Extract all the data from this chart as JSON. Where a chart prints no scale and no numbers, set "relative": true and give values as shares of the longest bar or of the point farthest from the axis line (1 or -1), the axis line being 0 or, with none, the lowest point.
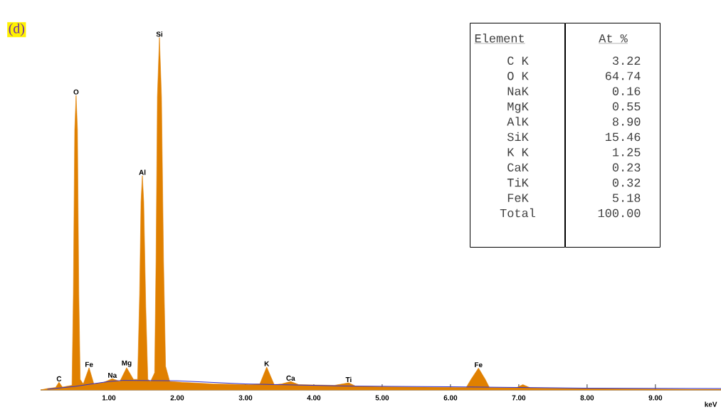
{
  "chart_data": {
    "type": "area",
    "relative": true,
    "title": "(d)",
    "xlabel": "keV",
    "xlim": [
      0,
      9.96
    ],
    "xticks": [
      {
        "value": 1,
        "label": "1.00"
      },
      {
        "value": 2,
        "label": "2.00"
      },
      {
        "value": 3,
        "label": "3.00"
      },
      {
        "value": 4,
        "label": "4.00"
      },
      {
        "value": 5,
        "label": "5.00"
      },
      {
        "value": 6,
        "label": "6.00"
      },
      {
        "value": 7,
        "label": "7.00"
      },
      {
        "value": 8,
        "label": "8.00"
      },
      {
        "value": 9,
        "label": "9.00"
      }
    ],
    "x": [
      0,
      0.1,
      0.22,
      0.27,
      0.32,
      0.4,
      0.46,
      0.48,
      0.5,
      0.52,
      0.54,
      0.56,
      0.58,
      0.625,
      0.71,
      0.78,
      0.92,
      1.05,
      1.16,
      1.26,
      1.36,
      1.42,
      1.45,
      1.47,
      1.49,
      1.51,
      1.54,
      1.57,
      1.61,
      1.67,
      1.69,
      1.71,
      1.74,
      1.77,
      1.8,
      1.83,
      1.89,
      2.11,
      2.53,
      3.05,
      3.21,
      3.31,
      3.42,
      3.53,
      3.66,
      3.78,
      4.3,
      4.51,
      4.61,
      5.14,
      6.07,
      6.23,
      6.3,
      6.41,
      6.51,
      6.57,
      6.96,
      7.06,
      7.17,
      8.26,
      9.51,
      9.96
    ],
    "series": [
      {
        "color": "#e08000",
        "values": [
          0,
          0.004,
          0.007,
          0.022,
          0.008,
          0.011,
          0.013,
          0.272,
          0.739,
          0.836,
          0.739,
          0.272,
          0.03,
          0.017,
          0.063,
          0.017,
          0.021,
          0.032,
          0.024,
          0.063,
          0.03,
          0.03,
          0.272,
          0.534,
          0.608,
          0.534,
          0.235,
          0.03,
          0.024,
          0.049,
          0.366,
          0.832,
          1.0,
          0.832,
          0.366,
          0.067,
          0.024,
          0.021,
          0.017,
          0.015,
          0.017,
          0.065,
          0.015,
          0.017,
          0.024,
          0.015,
          0.013,
          0.02,
          0.011,
          0.009,
          0.007,
          0.007,
          0.03,
          0.062,
          0.03,
          0.007,
          0.006,
          0.015,
          0.006,
          0.004,
          0.002,
          0.002
        ]
      },
      {
        "type": "line",
        "color": "#3030d0",
        "x": [
          0.1,
          0.5,
          1.0,
          1.2,
          2.0,
          3.0,
          4.5,
          6.0,
          8.0,
          9.96
        ],
        "values": [
          0.002,
          0.01,
          0.024,
          0.027,
          0.026,
          0.017,
          0.011,
          0.009,
          0.005,
          0.004
        ]
      }
    ],
    "annotations": [
      {
        "text": "C",
        "x": 0.27,
        "y": 0.022
      },
      {
        "text": "O",
        "x": 0.52,
        "y": 0.836
      },
      {
        "text": "Fe",
        "x": 0.71,
        "y": 0.063
      },
      {
        "text": "Na",
        "x": 1.05,
        "y": 0.032
      },
      {
        "text": "Mg",
        "x": 1.26,
        "y": 0.063
      },
      {
        "text": "Al",
        "x": 1.49,
        "y": 0.608
      },
      {
        "text": "Si",
        "x": 1.74,
        "y": 1.0
      },
      {
        "text": "K",
        "x": 3.31,
        "y": 0.065
      },
      {
        "text": "Ca",
        "x": 3.66,
        "y": 0.024
      },
      {
        "text": "Ti",
        "x": 4.51,
        "y": 0.02
      },
      {
        "text": "Fe",
        "x": 6.41,
        "y": 0.062
      },
      "Element",
      "At %",
      "C K",
      "3.22",
      "O K",
      "64.74",
      "NaK",
      "0.16",
      "MgK",
      "0.55",
      "AlK",
      "8.90",
      "SiK",
      "15.46",
      "K K",
      "1.25",
      "CaK",
      "0.23",
      "TiK",
      "0.32",
      "FeK",
      "5.18",
      "Total",
      "100.00"
    ]
  }
}
